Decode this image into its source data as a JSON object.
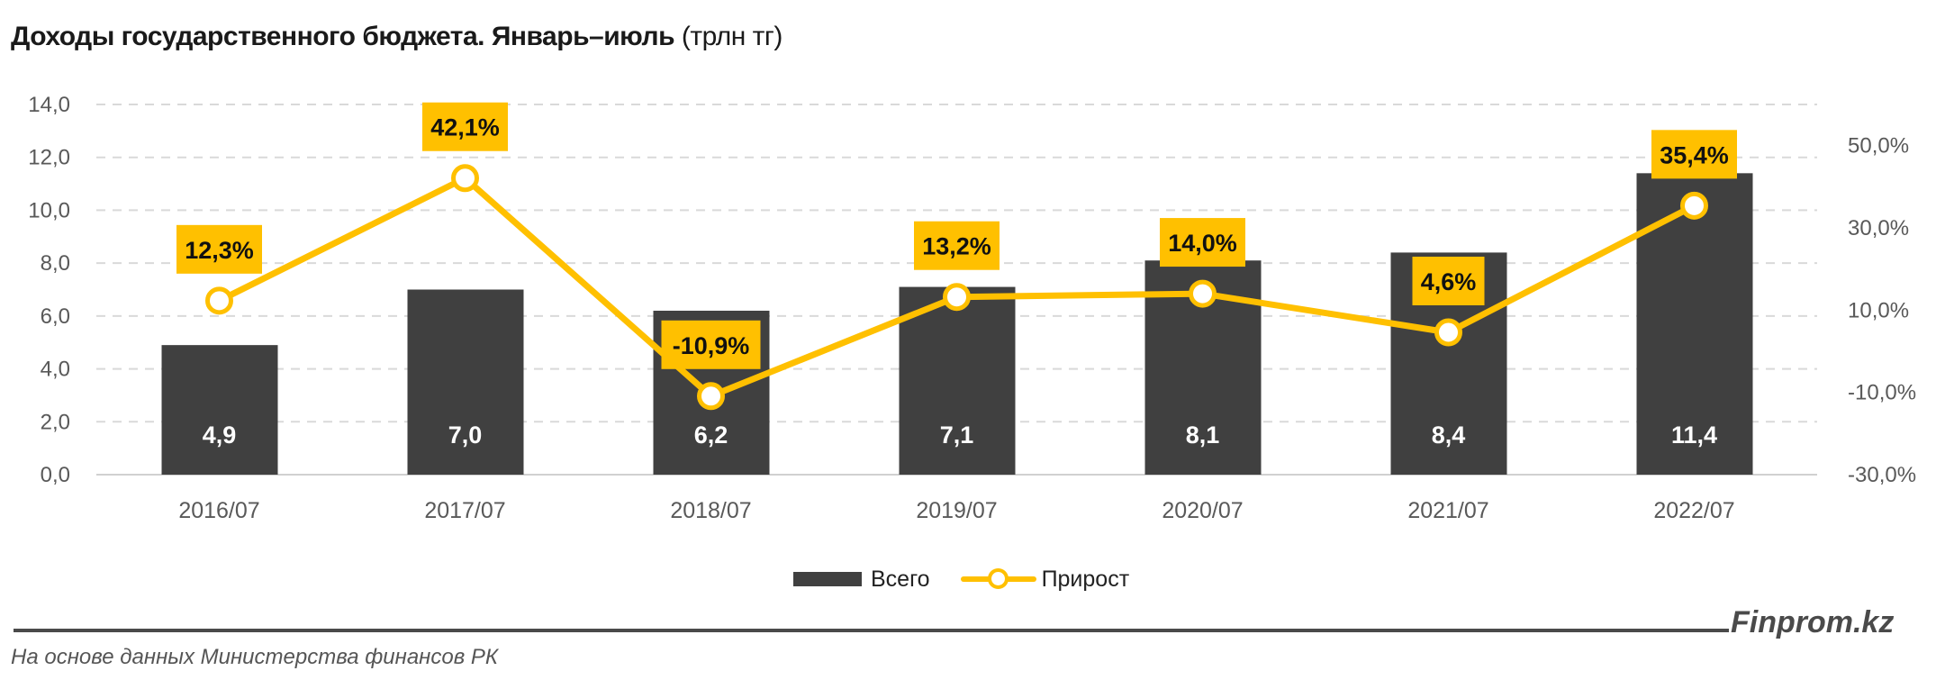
{
  "chart_data": {
    "type": "bar+line",
    "title": "Доходы государственного бюджета. Январь–июль",
    "title_unit": "(трлн тг)",
    "categories": [
      "2016/07",
      "2017/07",
      "2018/07",
      "2019/07",
      "2020/07",
      "2021/07",
      "2022/07"
    ],
    "series": [
      {
        "name": "Всего",
        "type": "bar",
        "axis": "left",
        "color": "#404040",
        "values": [
          4.9,
          7.0,
          6.2,
          7.1,
          8.1,
          8.4,
          11.4
        ],
        "labels": [
          "4,9",
          "7,0",
          "6,2",
          "7,1",
          "8,1",
          "8,4",
          "11,4"
        ]
      },
      {
        "name": "Прирост",
        "type": "line",
        "axis": "right",
        "color": "#FFC000",
        "values": [
          12.3,
          42.1,
          -10.9,
          13.2,
          14.0,
          4.6,
          35.4
        ],
        "labels": [
          "12,3%",
          "42,1%",
          "-10,9%",
          "13,2%",
          "14,0%",
          "4,6%",
          "35,4%"
        ]
      }
    ],
    "y_left": {
      "range": [
        0,
        14
      ],
      "ticks": [
        "0,0",
        "2,0",
        "4,0",
        "6,0",
        "8,0",
        "10,0",
        "12,0",
        "14,0"
      ]
    },
    "y_right": {
      "range": [
        -30,
        60
      ],
      "ticks": [
        "-30,0%",
        "-10,0%",
        "10,0%",
        "30,0%",
        "50,0%"
      ]
    },
    "grid": true,
    "legend_position": "bottom"
  },
  "legend": {
    "bar": "Всего",
    "line": "Прирост"
  },
  "footer": {
    "brand": "Finprom.kz",
    "source": "На основе данных Министерства финансов РК"
  }
}
